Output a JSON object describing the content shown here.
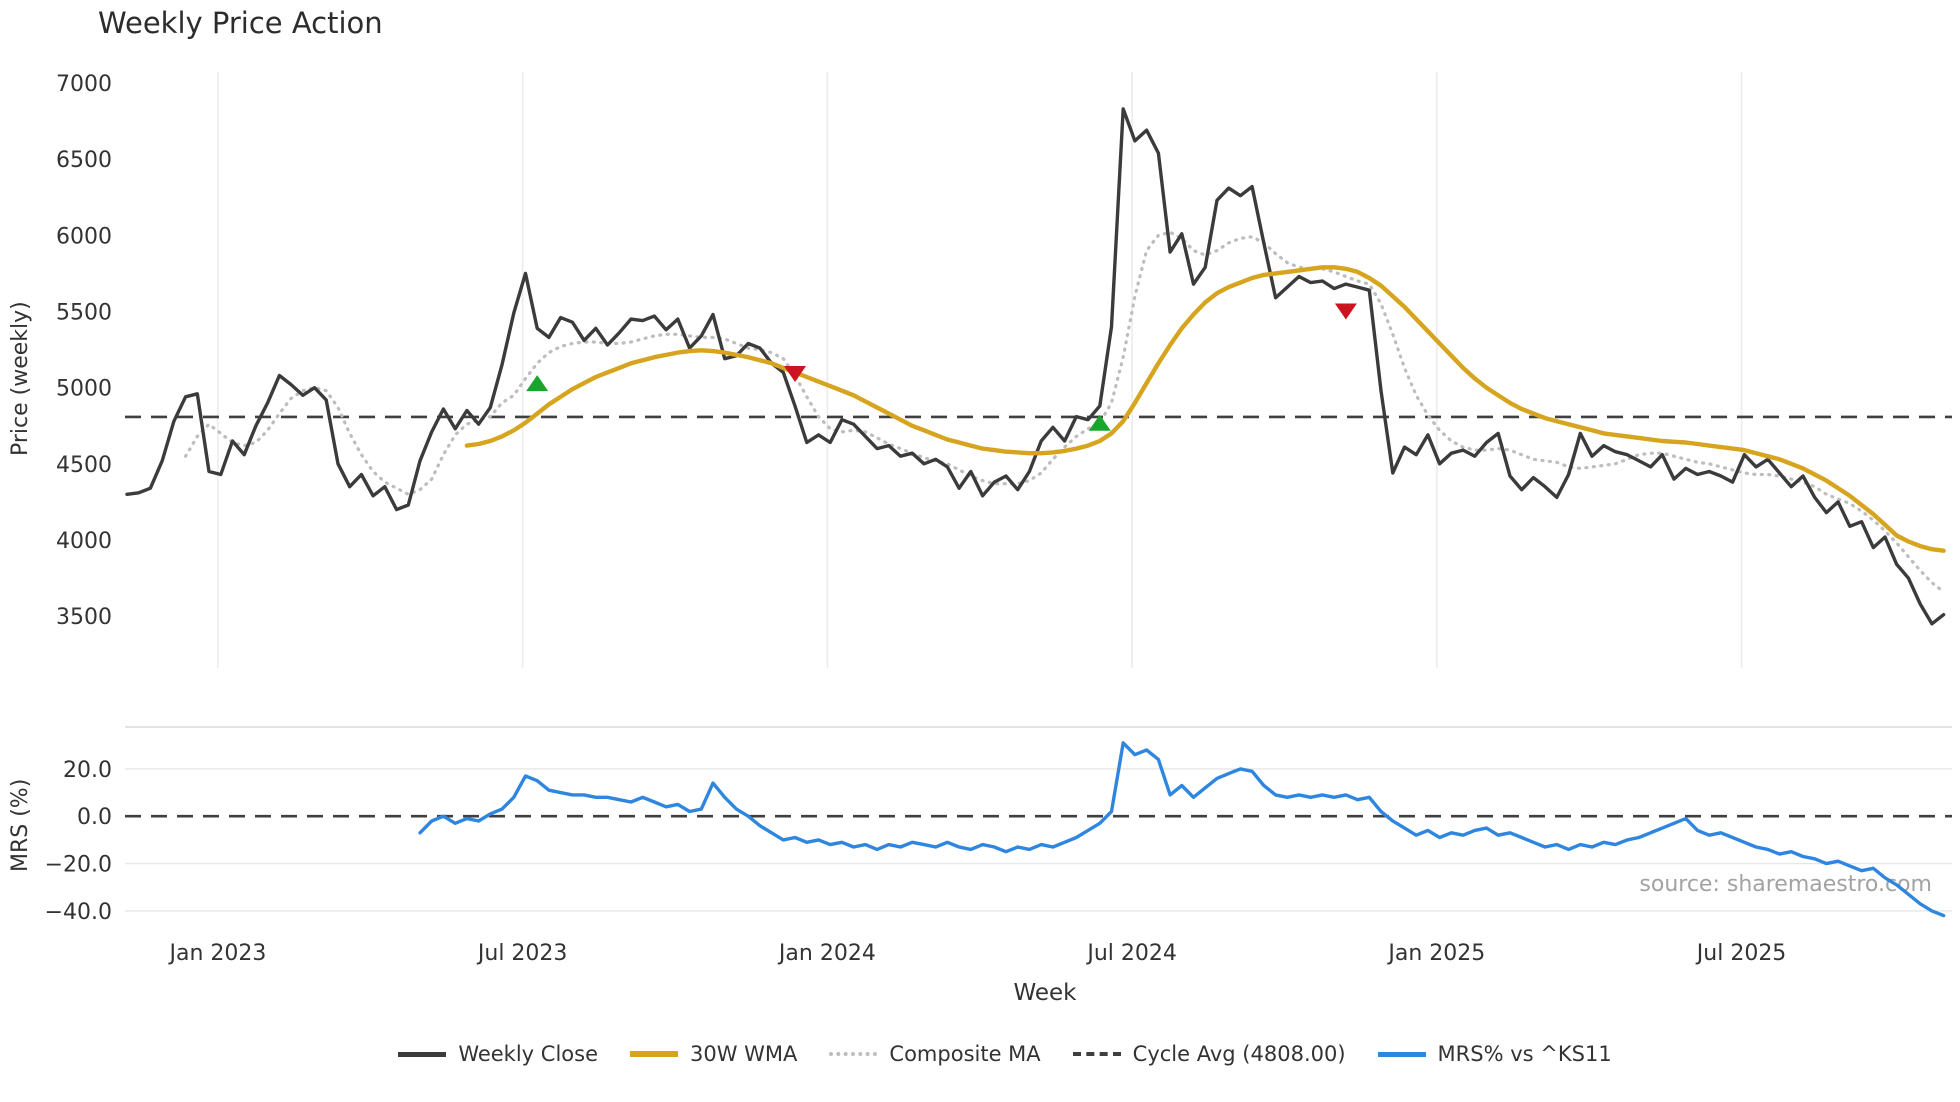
{
  "title": "Weekly Price Action",
  "xlabel": "Week",
  "source_text": "source: sharemaestro.com",
  "colors": {
    "weekly_close": "#3b3b3b",
    "wma": "#d6a41e",
    "composite": "#bdbdbd",
    "cycle_avg": "#3f3f3f",
    "mrs": "#2e86de",
    "buy_marker": "#18a52c",
    "sell_marker": "#cb1420",
    "gridline": "#ececec",
    "mrs_gridline": "#e6e6e6",
    "mrs_spine": "#dcdcdc",
    "tick_text": "#333333",
    "source_text": "#a2a2a2"
  },
  "legend": [
    {
      "label": "Weekly Close",
      "style": "solid",
      "color": "#3b3b3b",
      "thickness": 5
    },
    {
      "label": "30W WMA",
      "style": "solid",
      "color": "#d6a41e",
      "thickness": 6
    },
    {
      "label": "Composite MA",
      "style": "dotted",
      "color": "#bdbdbd",
      "thickness": 4
    },
    {
      "label": "Cycle Avg (4808.00)",
      "style": "dashed",
      "color": "#3f3f3f",
      "thickness": 4
    },
    {
      "label": "MRS% vs ^KS11",
      "style": "solid",
      "color": "#2e86de",
      "thickness": 5
    }
  ],
  "chart_data": {
    "type": "line",
    "x": {
      "unit": "week_index",
      "count": 156,
      "tick_positions": [
        7.76,
        33.76,
        59.76,
        85.76,
        111.76,
        137.76
      ],
      "tick_labels": [
        "Jan 2023",
        "Jul 2023",
        "Jan 2024",
        "Jul 2024",
        "Jan 2025",
        "Jul 2025"
      ]
    },
    "panels": [
      {
        "name": "price",
        "ylabel": "Price (weekly)",
        "ylim": [
          3160,
          7072
        ],
        "ytick_values": [
          7000,
          6500,
          6000,
          5500,
          5000,
          4500,
          4000,
          3500
        ],
        "ytick_labels": [
          "7000",
          "6500",
          "6000",
          "5500",
          "5000",
          "4500",
          "4000",
          "3500"
        ],
        "cycle_avg": 4808,
        "cycle_avg_label": "Cycle Avg (4808.00)",
        "grid": "vertical",
        "series": [
          {
            "name": "Weekly Close",
            "style": "solid",
            "color": "#3b3b3b",
            "values": [
              4300,
              4310,
              4340,
              4520,
              4780,
              4940,
              4960,
              4450,
              4430,
              4650,
              4560,
              4750,
              4900,
              5080,
              5020,
              4950,
              5000,
              4920,
              4500,
              4350,
              4430,
              4290,
              4350,
              4200,
              4230,
              4520,
              4710,
              4860,
              4730,
              4850,
              4760,
              4870,
              5150,
              5490,
              5750,
              5390,
              5330,
              5460,
              5430,
              5310,
              5390,
              5280,
              5360,
              5450,
              5440,
              5470,
              5380,
              5450,
              5260,
              5340,
              5480,
              5190,
              5210,
              5290,
              5260,
              5160,
              5100,
              4880,
              4640,
              4690,
              4640,
              4790,
              4760,
              4680,
              4600,
              4620,
              4550,
              4570,
              4500,
              4530,
              4480,
              4340,
              4450,
              4290,
              4380,
              4420,
              4330,
              4450,
              4650,
              4740,
              4650,
              4810,
              4790,
              4880,
              5400,
              6830,
              6620,
              6690,
              6540,
              5890,
              6010,
              5680,
              5790,
              6230,
              6310,
              6260,
              6320,
              5950,
              5590,
              5660,
              5730,
              5690,
              5700,
              5650,
              5680,
              5660,
              5640,
              4980,
              4440,
              4610,
              4560,
              4690,
              4500,
              4570,
              4590,
              4550,
              4640,
              4700,
              4420,
              4330,
              4410,
              4350,
              4280,
              4430,
              4700,
              4550,
              4620,
              4580,
              4560,
              4520,
              4480,
              4560,
              4400,
              4470,
              4430,
              4450,
              4420,
              4380,
              4560,
              4480,
              4530,
              4440,
              4350,
              4420,
              4280,
              4180,
              4250,
              4090,
              4120,
              3950,
              4020,
              3840,
              3750,
              3580,
              3450,
              3510
            ]
          },
          {
            "name": "30W WMA",
            "style": "solid",
            "color": "#d6a41e",
            "values": [
              null,
              null,
              null,
              null,
              null,
              null,
              null,
              null,
              null,
              null,
              null,
              null,
              null,
              null,
              null,
              null,
              null,
              null,
              null,
              null,
              null,
              null,
              null,
              null,
              null,
              null,
              null,
              null,
              null,
              4620,
              4630,
              4650,
              4680,
              4720,
              4770,
              4830,
              4890,
              4940,
              4990,
              5030,
              5070,
              5100,
              5130,
              5160,
              5180,
              5200,
              5215,
              5230,
              5240,
              5245,
              5240,
              5230,
              5215,
              5200,
              5180,
              5160,
              5130,
              5100,
              5070,
              5040,
              5010,
              4980,
              4950,
              4910,
              4870,
              4830,
              4790,
              4750,
              4720,
              4690,
              4660,
              4640,
              4620,
              4600,
              4590,
              4580,
              4575,
              4570,
              4570,
              4575,
              4585,
              4600,
              4620,
              4650,
              4700,
              4780,
              4900,
              5030,
              5160,
              5280,
              5390,
              5480,
              5560,
              5620,
              5660,
              5690,
              5720,
              5740,
              5750,
              5760,
              5770,
              5780,
              5790,
              5790,
              5780,
              5760,
              5720,
              5670,
              5600,
              5530,
              5450,
              5370,
              5290,
              5210,
              5130,
              5060,
              5000,
              4950,
              4900,
              4860,
              4830,
              4800,
              4780,
              4760,
              4740,
              4720,
              4700,
              4690,
              4680,
              4670,
              4660,
              4650,
              4645,
              4640,
              4630,
              4620,
              4610,
              4600,
              4590,
              4570,
              4550,
              4530,
              4500,
              4470,
              4430,
              4390,
              4340,
              4290,
              4230,
              4170,
              4100,
              4030,
              3990,
              3960,
              3940,
              3930
            ]
          },
          {
            "name": "Composite MA",
            "style": "dotted",
            "color": "#bdbdbd",
            "values": [
              null,
              null,
              null,
              null,
              null,
              4550,
              4680,
              4760,
              4700,
              4640,
              4620,
              4640,
              4720,
              4830,
              4930,
              4980,
              5000,
              4980,
              4870,
              4700,
              4560,
              4450,
              4380,
              4340,
              4300,
              4330,
              4400,
              4560,
              4690,
              4760,
              4790,
              4810,
              4900,
              4950,
              5060,
              5160,
              5230,
              5270,
              5290,
              5300,
              5300,
              5290,
              5290,
              5300,
              5320,
              5340,
              5350,
              5350,
              5340,
              5330,
              5330,
              5320,
              5290,
              5260,
              5250,
              5230,
              5190,
              5080,
              4940,
              4810,
              4730,
              4710,
              4720,
              4710,
              4670,
              4630,
              4600,
              4570,
              4540,
              4520,
              4500,
              4460,
              4420,
              4390,
              4370,
              4370,
              4370,
              4390,
              4440,
              4530,
              4610,
              4680,
              4730,
              4770,
              4900,
              5200,
              5600,
              5900,
              6000,
              6020,
              5980,
              5900,
              5870,
              5900,
              5950,
              5980,
              5990,
              5950,
              5880,
              5820,
              5790,
              5780,
              5780,
              5760,
              5730,
              5700,
              5680,
              5550,
              5350,
              5130,
              4950,
              4820,
              4720,
              4650,
              4610,
              4590,
              4590,
              4600,
              4590,
              4560,
              4530,
              4520,
              4510,
              4480,
              4470,
              4480,
              4490,
              4500,
              4530,
              4560,
              4570,
              4570,
              4550,
              4530,
              4510,
              4500,
              4480,
              4460,
              4440,
              4430,
              4430,
              4420,
              4400,
              4380,
              4350,
              4300,
              4270,
              4240,
              4190,
              4130,
              4060,
              3980,
              3890,
              3800,
              3720,
              3660
            ]
          }
        ],
        "signals": {
          "buy": [
            {
              "week": 35,
              "price": 5030
            },
            {
              "week": 83,
              "price": 4770
            }
          ],
          "sell": [
            {
              "week": 57,
              "price": 5090
            },
            {
              "week": 104,
              "price": 5500
            }
          ]
        }
      },
      {
        "name": "mrs",
        "ylabel": "MRS (%)",
        "ylim": [
          -43,
          37.7
        ],
        "ytick_values": [
          20,
          0,
          -20,
          -40
        ],
        "ytick_labels": [
          "20.0",
          "0.0",
          "−20.0",
          "−40.0"
        ],
        "zero_line": 0,
        "grid": "horizontal",
        "series": [
          {
            "name": "MRS% vs ^KS11",
            "style": "solid",
            "color": "#2e86de",
            "values": [
              null,
              null,
              null,
              null,
              null,
              null,
              null,
              null,
              null,
              null,
              null,
              null,
              null,
              null,
              null,
              null,
              null,
              null,
              null,
              null,
              null,
              null,
              null,
              null,
              null,
              -7,
              -2,
              0,
              -3,
              -1,
              -2,
              1,
              3,
              8,
              17,
              15,
              11,
              10,
              9,
              9,
              8,
              8,
              7,
              6,
              8,
              6,
              4,
              5,
              2,
              3,
              14,
              8,
              3,
              0,
              -4,
              -7,
              -10,
              -9,
              -11,
              -10,
              -12,
              -11,
              -13,
              -12,
              -14,
              -12,
              -13,
              -11,
              -12,
              -13,
              -11,
              -13,
              -14,
              -12,
              -13,
              -15,
              -13,
              -14,
              -12,
              -13,
              -11,
              -9,
              -6,
              -3,
              2,
              31,
              26,
              28,
              24,
              9,
              13,
              8,
              12,
              16,
              18,
              20,
              19,
              13,
              9,
              8,
              9,
              8,
              9,
              8,
              9,
              7,
              8,
              2,
              -2,
              -5,
              -8,
              -6,
              -9,
              -7,
              -8,
              -6,
              -5,
              -8,
              -7,
              -9,
              -11,
              -13,
              -12,
              -14,
              -12,
              -13,
              -11,
              -12,
              -10,
              -9,
              -7,
              -5,
              -3,
              -1,
              -6,
              -8,
              -7,
              -9,
              -11,
              -13,
              -14,
              -16,
              -15,
              -17,
              -18,
              -20,
              -19,
              -21,
              -23,
              -22,
              -26,
              -29,
              -33,
              -37,
              -40,
              -42
            ]
          }
        ]
      }
    ]
  }
}
